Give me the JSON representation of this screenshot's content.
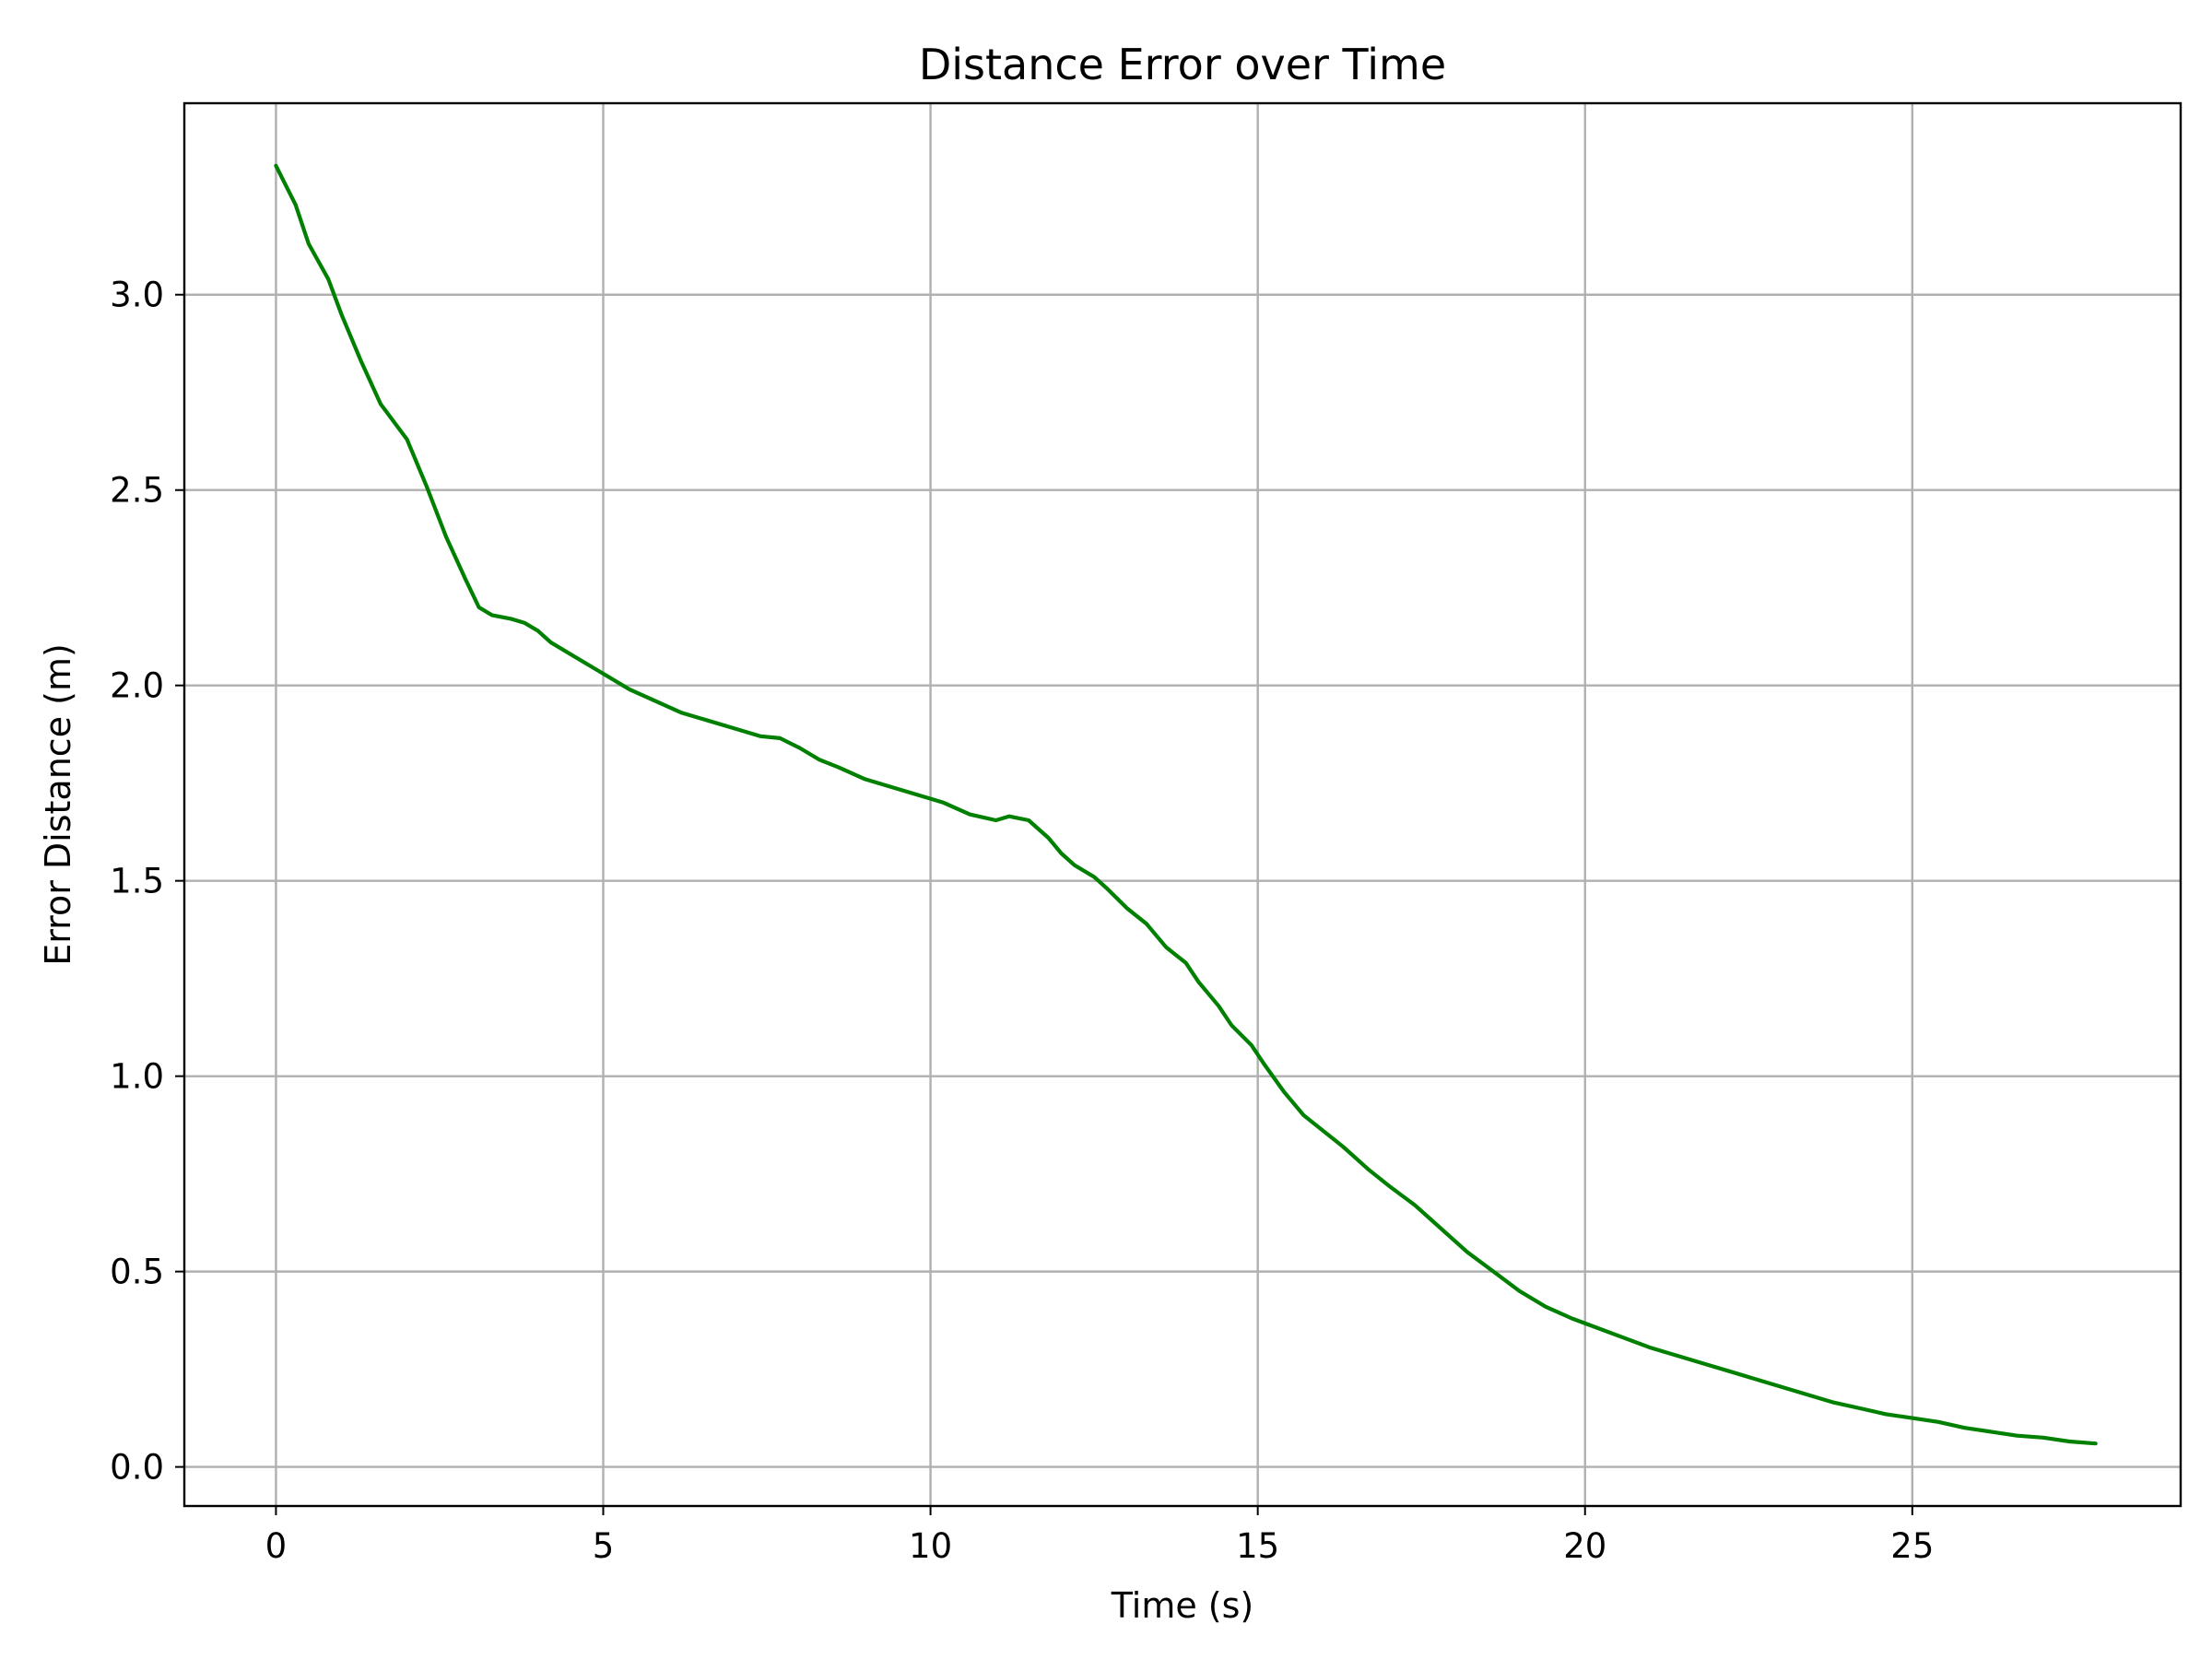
{
  "chart_data": {
    "type": "line",
    "title": "Distance Error over Time",
    "xlabel": "Time (s)",
    "ylabel": "Error Distance (m)",
    "xlim": [
      -1.4,
      29.1
    ],
    "ylim": [
      -0.1,
      3.49
    ],
    "xticks": [
      0,
      5,
      10,
      15,
      20,
      25
    ],
    "xtick_labels": [
      "0",
      "5",
      "10",
      "15",
      "20",
      "25"
    ],
    "yticks": [
      0.0,
      0.5,
      1.0,
      1.5,
      2.0,
      2.5,
      3.0
    ],
    "ytick_labels": [
      "0.0",
      "0.5",
      "1.0",
      "1.5",
      "2.0",
      "2.5",
      "3.0"
    ],
    "grid": true,
    "series": [
      {
        "color": "#008000",
        "x": [
          0,
          0.3,
          0.5,
          0.8,
          1.0,
          1.3,
          1.6,
          2.0,
          2.3,
          2.6,
          2.9,
          3.1,
          3.3,
          3.6,
          3.8,
          4.0,
          4.2,
          4.5,
          4.8,
          5.1,
          5.4,
          5.8,
          6.2,
          6.6,
          7.0,
          7.4,
          7.7,
          8.0,
          8.3,
          8.6,
          9.0,
          9.4,
          9.8,
          10.2,
          10.6,
          11.0,
          11.2,
          11.5,
          11.8,
          12.0,
          12.2,
          12.5,
          12.7,
          13.0,
          13.3,
          13.6,
          13.9,
          14.1,
          14.4,
          14.6,
          14.9,
          15.1,
          15.4,
          15.7,
          16.0,
          16.3,
          16.5,
          16.7,
          17.0,
          17.4,
          17.8,
          18.2,
          18.6,
          19.0,
          19.4,
          19.8,
          20.2,
          20.6,
          21.0,
          21.4,
          21.8,
          22.2,
          22.6,
          23.0,
          23.4,
          23.8,
          24.2,
          24.6,
          25.0,
          25.4,
          25.8,
          26.2,
          26.6,
          27.0,
          27.4,
          27.8
        ],
        "y": [
          3.33,
          3.23,
          3.13,
          3.04,
          2.95,
          2.83,
          2.72,
          2.63,
          2.51,
          2.38,
          2.27,
          2.2,
          2.18,
          2.17,
          2.16,
          2.14,
          2.11,
          2.08,
          2.05,
          2.02,
          1.99,
          1.96,
          1.93,
          1.91,
          1.89,
          1.87,
          1.865,
          1.84,
          1.81,
          1.79,
          1.76,
          1.74,
          1.72,
          1.7,
          1.67,
          1.655,
          1.665,
          1.655,
          1.61,
          1.57,
          1.54,
          1.51,
          1.48,
          1.43,
          1.39,
          1.33,
          1.29,
          1.24,
          1.18,
          1.13,
          1.08,
          1.03,
          0.96,
          0.9,
          0.86,
          0.82,
          0.79,
          0.76,
          0.72,
          0.67,
          0.61,
          0.55,
          0.5,
          0.45,
          0.41,
          0.38,
          0.355,
          0.33,
          0.305,
          0.285,
          0.265,
          0.245,
          0.225,
          0.205,
          0.185,
          0.165,
          0.15,
          0.135,
          0.125,
          0.115,
          0.1,
          0.09,
          0.08,
          0.075,
          0.065,
          0.06
        ]
      }
    ]
  }
}
